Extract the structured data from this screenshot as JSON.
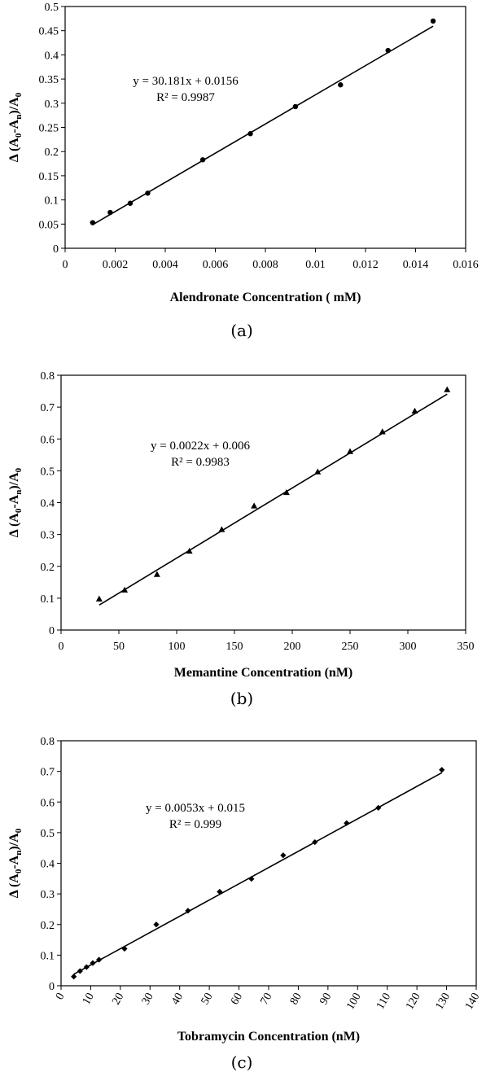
{
  "chart_data": [
    {
      "type": "scatter",
      "marker": "circle",
      "xlabel": "Alendronate Concentration ( mM)",
      "ylabel": "Δ (A0-An)/A0",
      "ylabel_parts": [
        "Δ (A",
        "0",
        "-A",
        "n",
        ")/A",
        "0"
      ],
      "xlim": [
        0,
        0.016
      ],
      "ylim": [
        0,
        0.5
      ],
      "x_ticks": [
        "0",
        "0.002",
        "0.004",
        "0.006",
        "0.008",
        "0.01",
        "0.012",
        "0.014",
        "0.016"
      ],
      "y_ticks": [
        "0",
        "0.05",
        "0.1",
        "0.15",
        "0.2",
        "0.25",
        "0.3",
        "0.35",
        "0.4",
        "0.45",
        "0.5"
      ],
      "x": [
        0.0011,
        0.0018,
        0.0026,
        0.0033,
        0.0055,
        0.0074,
        0.0092,
        0.011,
        0.0129,
        0.0147
      ],
      "y": [
        0.053,
        0.074,
        0.093,
        0.114,
        0.183,
        0.237,
        0.293,
        0.338,
        0.409,
        0.47
      ],
      "trendline": {
        "slope": 30.181,
        "intercept": 0.0156,
        "x_range": [
          0.0011,
          0.0147
        ]
      },
      "equation": "y = 30.181x + 0.0156",
      "r2": "R² = 0.9987",
      "caption": "(a)",
      "grid": false
    },
    {
      "type": "scatter",
      "marker": "triangle",
      "xlabel": "Memantine Concentration (nM)",
      "ylabel": "Δ (A0-An)/A0",
      "ylabel_parts": [
        "Δ (A",
        "0",
        "-A",
        "n",
        ")/A",
        "0"
      ],
      "xlim": [
        0,
        350
      ],
      "ylim": [
        0,
        0.8
      ],
      "x_ticks": [
        "0",
        "50",
        "100",
        "150",
        "200",
        "250",
        "300",
        "350"
      ],
      "y_ticks": [
        "0",
        "0.1",
        "0.2",
        "0.3",
        "0.4",
        "0.5",
        "0.6",
        "0.7",
        "0.8"
      ],
      "x": [
        33,
        55,
        83,
        111,
        139,
        167,
        195,
        222,
        250,
        278,
        306,
        334
      ],
      "y": [
        0.098,
        0.126,
        0.175,
        0.248,
        0.316,
        0.39,
        0.432,
        0.497,
        0.561,
        0.623,
        0.688,
        0.755
      ],
      "trendline": {
        "slope": 0.0022,
        "intercept": 0.006,
        "x_range": [
          33,
          334
        ]
      },
      "equation": "y = 0.0022x + 0.006",
      "r2": "R² = 0.9983",
      "caption": "(b)",
      "grid": false
    },
    {
      "type": "scatter",
      "marker": "diamond",
      "xlabel": "Tobramycin Concentration (nM)",
      "ylabel": "Δ (A0-An)/A0",
      "ylabel_parts": [
        "Δ (A",
        "0",
        "-A",
        "n",
        ")/A",
        "0"
      ],
      "xlim": [
        0,
        140
      ],
      "ylim": [
        0,
        0.8
      ],
      "x_ticks": [
        "0",
        "10",
        "20",
        "30",
        "40",
        "50",
        "60",
        "70",
        "80",
        "90",
        "100",
        "110",
        "120",
        "130",
        "140"
      ],
      "y_ticks": [
        "0",
        "0.1",
        "0.2",
        "0.3",
        "0.4",
        "0.5",
        "0.6",
        "0.7",
        "0.8"
      ],
      "x": [
        4.3,
        6.4,
        8.6,
        10.7,
        12.8,
        21.4,
        32.1,
        42.8,
        53.5,
        64.2,
        74.9,
        85.6,
        96.3,
        107,
        128.4
      ],
      "y": [
        0.03,
        0.048,
        0.061,
        0.074,
        0.085,
        0.121,
        0.2,
        0.245,
        0.307,
        0.349,
        0.426,
        0.469,
        0.531,
        0.581,
        0.705
      ],
      "trendline": {
        "slope": 0.0053,
        "intercept": 0.015,
        "x_range": [
          4.3,
          128.4
        ]
      },
      "equation": "y = 0.0053x + 0.015",
      "r2": "R² = 0.999",
      "caption": "(c)",
      "grid": false
    }
  ]
}
